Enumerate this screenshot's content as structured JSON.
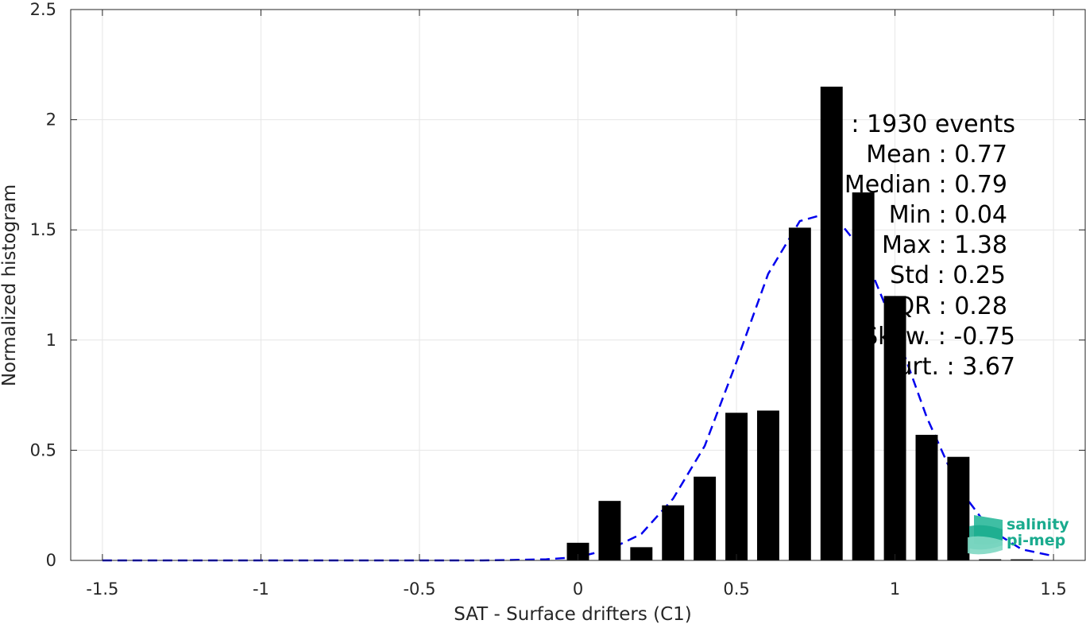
{
  "chart_data": {
    "type": "bar",
    "xlabel": "SAT - Surface drifters (C1)",
    "ylabel": "Normalized histogram",
    "xlim": [
      -1.6,
      1.6
    ],
    "ylim": [
      0,
      2.5
    ],
    "xticks": [
      -1.5,
      -1,
      -0.5,
      0,
      0.5,
      1,
      1.5
    ],
    "xtick_labels": [
      "-1.5",
      "-1",
      "-0.5",
      "0",
      "0.5",
      "1",
      "1.5"
    ],
    "yticks": [
      0,
      0.5,
      1,
      1.5,
      2,
      2.5
    ],
    "ytick_labels": [
      "0",
      "0.5",
      "1",
      "1.5",
      "2",
      "2.5"
    ],
    "grid": true,
    "bar_width": 0.07,
    "bar_color": "#000000",
    "bars": {
      "x": [
        0.0,
        0.1,
        0.2,
        0.3,
        0.4,
        0.5,
        0.6,
        0.7,
        0.8,
        0.9,
        1.0,
        1.1,
        1.2,
        1.3,
        1.4
      ],
      "values": [
        0.08,
        0.27,
        0.06,
        0.25,
        0.38,
        0.67,
        0.68,
        1.51,
        2.15,
        1.67,
        1.2,
        0.57,
        0.47,
        0.005,
        0.005
      ]
    },
    "fit_curve": {
      "style": "dashed",
      "color": "#0000ee",
      "x": [
        -1.5,
        -1.4,
        -1.3,
        -1.2,
        -1.1,
        -1.0,
        -0.9,
        -0.8,
        -0.7,
        -0.6,
        -0.5,
        -0.4,
        -0.3,
        -0.2,
        -0.1,
        0.0,
        0.1,
        0.2,
        0.3,
        0.4,
        0.5,
        0.6,
        0.7,
        0.8,
        0.9,
        1.0,
        1.1,
        1.2,
        1.3,
        1.4,
        1.5
      ],
      "y": [
        0.0,
        0.0,
        0.0,
        0.0,
        0.0,
        0.0,
        0.0,
        0.0,
        0.0,
        0.0,
        0.0,
        0.0,
        0.0,
        0.002,
        0.005,
        0.015,
        0.05,
        0.12,
        0.28,
        0.52,
        0.9,
        1.3,
        1.54,
        1.58,
        1.4,
        1.05,
        0.65,
        0.33,
        0.14,
        0.05,
        0.02
      ]
    },
    "stats_lines": [
      "# : 1930 events",
      "Mean : 0.77",
      "Median : 0.79",
      "Min : 0.04",
      "Max : 1.38",
      "Std : 0.25",
      "IQR : 0.28",
      "Skew. : -0.75",
      "Kurt. : 3.67"
    ]
  },
  "logo": {
    "line1": "salinity",
    "line2": "pi-mep",
    "color": "#1aab8e"
  }
}
